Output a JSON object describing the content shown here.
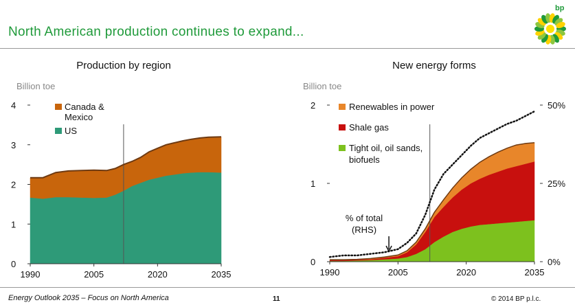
{
  "slide": {
    "title": "North American production continues to expand...",
    "logo_text": "bp",
    "footer_left": "Energy Outlook 2035 – Focus on North America",
    "page_number": "11",
    "copyright": "© 2014 BP p.l.c."
  },
  "colors": {
    "title_green": "#1f9a3a",
    "us": "#2e9a78",
    "canada_mexico": "#c8650c",
    "renewables": "#e8862a",
    "shale_gas": "#c8100e",
    "tight_oil": "#7dc11e",
    "brown_top": "#6e3a12",
    "dotted": "#111111"
  },
  "chart_data": [
    {
      "type": "area",
      "stacked": true,
      "title": "Production by region",
      "ylabel": "Billion toe",
      "xlim": [
        1990,
        2035
      ],
      "ylim": [
        0,
        4
      ],
      "x_ticks": [
        1990,
        2005,
        2020,
        2035
      ],
      "y_ticks": [
        0,
        1,
        2,
        3,
        4
      ],
      "vertical_line_x": 2012,
      "x": [
        1990,
        1993,
        1996,
        1999,
        2002,
        2005,
        2008,
        2010,
        2012,
        2014,
        2016,
        2018,
        2020,
        2022,
        2024,
        2026,
        2028,
        2030,
        2032,
        2035
      ],
      "series": [
        {
          "name": "US",
          "color_key": "us",
          "values": [
            1.67,
            1.64,
            1.68,
            1.68,
            1.67,
            1.66,
            1.67,
            1.74,
            1.84,
            1.96,
            2.04,
            2.12,
            2.17,
            2.22,
            2.25,
            2.28,
            2.3,
            2.31,
            2.31,
            2.3
          ]
        },
        {
          "name": "Canada & Mexico",
          "color_key": "canada_mexico",
          "values": [
            0.5,
            0.53,
            0.62,
            0.66,
            0.68,
            0.7,
            0.68,
            0.66,
            0.66,
            0.62,
            0.64,
            0.7,
            0.74,
            0.78,
            0.8,
            0.82,
            0.84,
            0.86,
            0.88,
            0.9
          ]
        }
      ],
      "legend": [
        "Canada & Mexico",
        "US"
      ],
      "legend_position": "top-left"
    },
    {
      "type": "area",
      "stacked": true,
      "title": "New energy forms",
      "ylabel": "Billion toe",
      "xlim": [
        1990,
        2035
      ],
      "ylim": [
        0,
        2
      ],
      "x_ticks": [
        1990,
        2005,
        2020,
        2035
      ],
      "y_ticks": [
        0,
        1,
        2
      ],
      "y2_ticks": [
        "0%",
        "25%",
        "50%"
      ],
      "y2lim": [
        0,
        50
      ],
      "vertical_line_x": 2012,
      "x": [
        1990,
        1993,
        1996,
        1999,
        2002,
        2005,
        2007,
        2009,
        2011,
        2013,
        2015,
        2017,
        2019,
        2021,
        2023,
        2025,
        2027,
        2029,
        2031,
        2033,
        2035
      ],
      "series": [
        {
          "name": "Tight oil, oil sands, biofuels",
          "color_key": "tight_oil",
          "values": [
            0.01,
            0.01,
            0.015,
            0.02,
            0.03,
            0.04,
            0.06,
            0.1,
            0.16,
            0.25,
            0.32,
            0.38,
            0.42,
            0.45,
            0.47,
            0.48,
            0.49,
            0.5,
            0.51,
            0.52,
            0.53
          ]
        },
        {
          "name": "Shale gas",
          "color_key": "shale_gas",
          "values": [
            0.01,
            0.01,
            0.01,
            0.01,
            0.02,
            0.03,
            0.06,
            0.12,
            0.22,
            0.32,
            0.38,
            0.44,
            0.5,
            0.55,
            0.59,
            0.63,
            0.66,
            0.69,
            0.71,
            0.73,
            0.75
          ]
        },
        {
          "name": "Renewables in power",
          "color_key": "renewables",
          "values": [
            0.005,
            0.005,
            0.005,
            0.01,
            0.01,
            0.015,
            0.02,
            0.03,
            0.04,
            0.06,
            0.09,
            0.12,
            0.15,
            0.18,
            0.21,
            0.23,
            0.25,
            0.26,
            0.27,
            0.26,
            0.24
          ]
        }
      ],
      "rhs_series": {
        "name": "% of total (RHS)",
        "y2_values": [
          1.5,
          2,
          2,
          2.5,
          3,
          4,
          6,
          9,
          15,
          23,
          28,
          31,
          34,
          37,
          39.5,
          41,
          42.5,
          44,
          45,
          46.5,
          48
        ]
      },
      "legend": [
        "Renewables in power",
        "Shale gas",
        "Tight oil, oil sands, biofuels"
      ],
      "legend_position": "top-left",
      "annotation": {
        "text_line1": "% of total",
        "text_line2": "(RHS)",
        "arrow_to_x": 2003
      }
    }
  ]
}
